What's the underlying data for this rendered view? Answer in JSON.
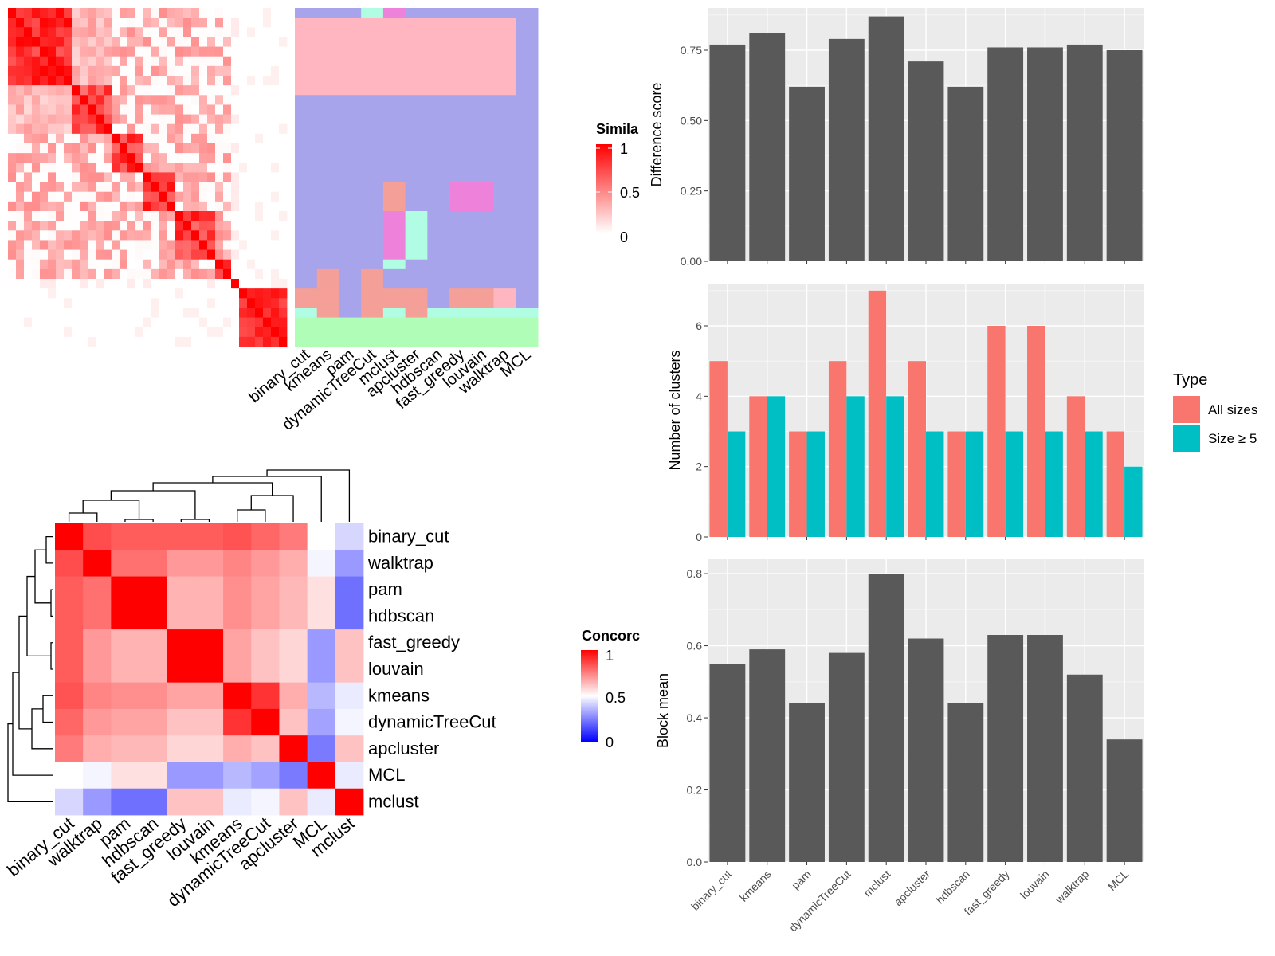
{
  "methods_order": [
    "binary_cut",
    "kmeans",
    "pam",
    "dynamicTreeCut",
    "mclust",
    "apcluster",
    "hdbscan",
    "fast_greedy",
    "louvain",
    "walktrap",
    "MCL"
  ],
  "similarity_panel": {
    "legend_title": "Simila",
    "legend_ticks": [
      "1",
      "0.5",
      "0"
    ],
    "method_labels": [
      "binary_cut",
      "kmeans",
      "pam",
      "dynamicTreeCut",
      "mclust",
      "apcluster",
      "hdbscan",
      "fast_greedy",
      "louvain",
      "walktrap",
      "MCL"
    ],
    "colors": {
      "low": "#ffffff",
      "high": "#ff0000"
    }
  },
  "concordance_panel": {
    "legend_title": "Concorc",
    "legend_ticks": [
      "1",
      "0.5",
      "0"
    ],
    "row_labels": [
      "binary_cut",
      "walktrap",
      "pam",
      "hdbscan",
      "fast_greedy",
      "louvain",
      "kmeans",
      "dynamicTreeCut",
      "apcluster",
      "MCL",
      "mclust"
    ],
    "col_labels": [
      "binary_cut",
      "walktrap",
      "pam",
      "hdbscan",
      "fast_greedy",
      "louvain",
      "kmeans",
      "dynamicTreeCut",
      "apcluster",
      "MCL",
      "mclust"
    ],
    "colors": {
      "low": "#0000ff",
      "mid": "#ffffff",
      "high": "#ff0000"
    }
  },
  "chart_data": [
    {
      "type": "heatmap",
      "categories": [
        "binary_cut",
        "walktrap",
        "pam",
        "hdbscan",
        "fast_greedy",
        "louvain",
        "kmeans",
        "dynamicTreeCut",
        "apcluster",
        "MCL",
        "mclust"
      ],
      "values": [
        [
          1.0,
          0.85,
          0.82,
          0.82,
          0.82,
          0.82,
          0.84,
          0.8,
          0.76,
          0.5,
          0.42
        ],
        [
          0.85,
          1.0,
          0.78,
          0.78,
          0.7,
          0.7,
          0.74,
          0.7,
          0.66,
          0.48,
          0.3
        ],
        [
          0.82,
          0.78,
          1.0,
          1.0,
          0.65,
          0.65,
          0.72,
          0.68,
          0.64,
          0.56,
          0.22
        ],
        [
          0.82,
          0.78,
          1.0,
          1.0,
          0.65,
          0.65,
          0.72,
          0.68,
          0.64,
          0.56,
          0.22
        ],
        [
          0.82,
          0.7,
          0.65,
          0.65,
          1.0,
          1.0,
          0.68,
          0.62,
          0.58,
          0.3,
          0.62
        ],
        [
          0.82,
          0.7,
          0.65,
          0.65,
          1.0,
          1.0,
          0.68,
          0.62,
          0.58,
          0.3,
          0.62
        ],
        [
          0.84,
          0.74,
          0.72,
          0.72,
          0.68,
          0.68,
          1.0,
          0.9,
          0.66,
          0.36,
          0.46
        ],
        [
          0.8,
          0.7,
          0.68,
          0.68,
          0.62,
          0.62,
          0.9,
          1.0,
          0.62,
          0.32,
          0.48
        ],
        [
          0.76,
          0.66,
          0.64,
          0.64,
          0.58,
          0.58,
          0.66,
          0.62,
          1.0,
          0.24,
          0.62
        ],
        [
          0.5,
          0.48,
          0.56,
          0.56,
          0.3,
          0.3,
          0.36,
          0.32,
          0.24,
          1.0,
          0.46
        ],
        [
          0.42,
          0.3,
          0.22,
          0.22,
          0.62,
          0.62,
          0.46,
          0.48,
          0.62,
          0.46,
          1.0
        ]
      ],
      "scale": [
        0,
        1
      ]
    },
    {
      "type": "bar",
      "categories": [
        "binary_cut",
        "kmeans",
        "pam",
        "dynamicTreeCut",
        "mclust",
        "apcluster",
        "hdbscan",
        "fast_greedy",
        "louvain",
        "walktrap",
        "MCL"
      ],
      "values": [
        0.77,
        0.81,
        0.62,
        0.79,
        0.87,
        0.71,
        0.62,
        0.76,
        0.76,
        0.77,
        0.75
      ],
      "ylabel": "Difference score",
      "ylim": [
        0,
        0.9
      ],
      "yticks": [
        "0.00",
        "0.25",
        "0.50",
        "0.75"
      ],
      "color": "#595959"
    },
    {
      "type": "bar",
      "categories": [
        "binary_cut",
        "kmeans",
        "pam",
        "dynamicTreeCut",
        "mclust",
        "apcluster",
        "hdbscan",
        "fast_greedy",
        "louvain",
        "walktrap",
        "MCL"
      ],
      "series": [
        {
          "name": "All sizes",
          "values": [
            5,
            4,
            3,
            5,
            7,
            5,
            3,
            6,
            6,
            4,
            3
          ],
          "color": "#f8766d"
        },
        {
          "name": "Size ≥ 5",
          "values": [
            3,
            4,
            3,
            4,
            4,
            3,
            3,
            3,
            3,
            3,
            2
          ],
          "color": "#00bfc4"
        }
      ],
      "ylabel": "Number of clusters",
      "ylim": [
        0,
        7.2
      ],
      "yticks": [
        "0",
        "2",
        "4",
        "6"
      ],
      "legend_title": "Type"
    },
    {
      "type": "bar",
      "categories": [
        "binary_cut",
        "kmeans",
        "pam",
        "dynamicTreeCut",
        "mclust",
        "apcluster",
        "hdbscan",
        "fast_greedy",
        "louvain",
        "walktrap",
        "MCL"
      ],
      "values": [
        0.55,
        0.59,
        0.44,
        0.58,
        0.8,
        0.62,
        0.44,
        0.63,
        0.63,
        0.52,
        0.34
      ],
      "ylabel": "Block mean",
      "ylim": [
        0,
        0.84
      ],
      "yticks": [
        "0.0",
        "0.2",
        "0.4",
        "0.6",
        "0.8"
      ],
      "color": "#595959"
    }
  ]
}
